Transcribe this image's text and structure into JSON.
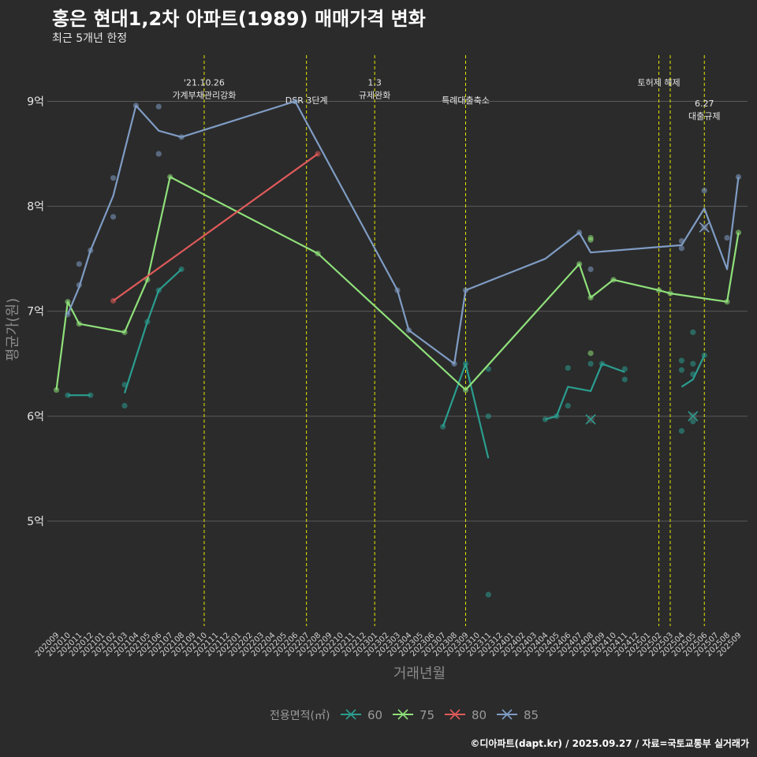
{
  "title": "홍은 현대1,2차 아파트(1989) 매매가격 변화",
  "subtitle": "최근 5개년 한정",
  "caption": "©디아파트(dapt.kr) / 2025.09.27 / 자료=국토교통부 실거래가",
  "colors": {
    "background": "#2b2b2b",
    "grid": "#5a5a5a",
    "event_line": "#e6e600",
    "s60": "#2a9d8f",
    "s75": "#8fe07a",
    "s80": "#e05a5a",
    "s85": "#7f9cc4"
  },
  "chart_data": {
    "type": "line",
    "title": "홍은 현대1,2차 아파트(1989) 매매가격 변화",
    "xlabel": "거래년월",
    "ylabel": "평균가(원)",
    "ylim": [
      4.0,
      9.5
    ],
    "yticks": [
      5,
      6,
      7,
      8,
      9
    ],
    "ytick_labels": [
      "5억",
      "6억",
      "7억",
      "8억",
      "9억"
    ],
    "x_months": [
      "202009",
      "202010",
      "202011",
      "202012",
      "202101",
      "202102",
      "202103",
      "202104",
      "202105",
      "202106",
      "202107",
      "202108",
      "202109",
      "202110",
      "202111",
      "202112",
      "202201",
      "202202",
      "202203",
      "202204",
      "202205",
      "202206",
      "202207",
      "202208",
      "202209",
      "202210",
      "202211",
      "202212",
      "202301",
      "202302",
      "202303",
      "202304",
      "202305",
      "202306",
      "202307",
      "202308",
      "202309",
      "202310",
      "202311",
      "202312",
      "202401",
      "202402",
      "202403",
      "202404",
      "202405",
      "202406",
      "202407",
      "202408",
      "202409",
      "202410",
      "202411",
      "202412",
      "202501",
      "202502",
      "202503",
      "202504",
      "202505",
      "202506",
      "202507",
      "202508",
      "202509"
    ],
    "legend_title": "전용면적(㎡)",
    "legend_position": "bottom",
    "grid": true,
    "series": [
      {
        "name": "60",
        "color": "#2a9d8f",
        "line": [
          [
            [
              "202010",
              6.2
            ],
            [
              "202012",
              6.2
            ]
          ],
          [
            [
              "202103",
              6.22
            ],
            [
              "202105",
              6.9
            ],
            [
              "202106",
              7.2
            ],
            [
              "202108",
              7.4
            ]
          ],
          [
            [
              "202307",
              5.9
            ],
            [
              "202309",
              6.5
            ],
            [
              "202311",
              5.6
            ]
          ],
          [
            [
              "202404",
              5.97
            ],
            [
              "202405",
              6.0
            ],
            [
              "202406",
              6.28
            ],
            [
              "202408",
              6.24
            ],
            [
              "202409",
              6.5
            ],
            [
              "202411",
              6.42
            ]
          ],
          [
            [
              "202504",
              6.28
            ],
            [
              "202505",
              6.35
            ],
            [
              "202506",
              6.58
            ]
          ]
        ],
        "points": [
          [
            "202010",
            6.2
          ],
          [
            "202012",
            6.2
          ],
          [
            "202103",
            6.3
          ],
          [
            "202103",
            6.1
          ],
          [
            "202105",
            6.9
          ],
          [
            "202106",
            7.2
          ],
          [
            "202108",
            7.4
          ],
          [
            "202307",
            5.9
          ],
          [
            "202309",
            6.5
          ],
          [
            "202311",
            6.45
          ],
          [
            "202311",
            6.0
          ],
          [
            "202311",
            4.3
          ],
          [
            "202404",
            5.97
          ],
          [
            "202405",
            6.0
          ],
          [
            "202406",
            6.46
          ],
          [
            "202406",
            6.1
          ],
          [
            "202408",
            6.5
          ],
          [
            "202409",
            6.5
          ],
          [
            "202411",
            6.45
          ],
          [
            "202411",
            6.35
          ],
          [
            "202504",
            6.53
          ],
          [
            "202504",
            6.44
          ],
          [
            "202504",
            5.86
          ],
          [
            "202505",
            6.8
          ],
          [
            "202505",
            6.5
          ],
          [
            "202505",
            6.4
          ],
          [
            "202505",
            5.95
          ],
          [
            "202506",
            6.58
          ]
        ],
        "marks": [
          [
            "202408",
            5.97
          ],
          [
            "202505",
            6.0
          ]
        ]
      },
      {
        "name": "75",
        "color": "#8fe07a",
        "line": [
          [
            [
              "202009",
              6.25
            ],
            [
              "202010",
              7.09
            ],
            [
              "202011",
              6.88
            ],
            [
              "202103",
              6.8
            ],
            [
              "202105",
              7.3
            ],
            [
              "202107",
              8.28
            ],
            [
              "202208",
              7.55
            ],
            [
              "202309",
              6.25
            ],
            [
              "202407",
              7.45
            ],
            [
              "202408",
              7.13
            ],
            [
              "202410",
              7.3
            ],
            [
              "202502",
              7.2
            ],
            [
              "202503",
              7.17
            ],
            [
              "202508",
              7.09
            ],
            [
              "202509",
              7.75
            ]
          ]
        ],
        "points": [
          [
            "202009",
            6.25
          ],
          [
            "202010",
            7.09
          ],
          [
            "202011",
            6.88
          ],
          [
            "202103",
            6.8
          ],
          [
            "202105",
            7.3
          ],
          [
            "202107",
            8.28
          ],
          [
            "202208",
            7.55
          ],
          [
            "202309",
            6.25
          ],
          [
            "202407",
            7.45
          ],
          [
            "202408",
            7.13
          ],
          [
            "202408",
            7.7
          ],
          [
            "202408",
            7.68
          ],
          [
            "202408",
            6.6
          ],
          [
            "202410",
            7.3
          ],
          [
            "202502",
            7.2
          ],
          [
            "202503",
            7.17
          ],
          [
            "202508",
            7.09
          ],
          [
            "202509",
            7.75
          ]
        ],
        "marks": []
      },
      {
        "name": "80",
        "color": "#e05a5a",
        "line": [
          [
            [
              "202102",
              7.1
            ],
            [
              "202208",
              8.5
            ]
          ]
        ],
        "points": [
          [
            "202102",
            7.1
          ],
          [
            "202208",
            8.5
          ]
        ],
        "marks": []
      },
      {
        "name": "85",
        "color": "#7f9cc4",
        "line": [
          [
            [
              "202010",
              6.97
            ],
            [
              "202011",
              7.23
            ],
            [
              "202012",
              7.58
            ],
            [
              "202102",
              8.1
            ],
            [
              "202104",
              8.96
            ],
            [
              "202106",
              8.72
            ],
            [
              "202108",
              8.66
            ],
            [
              "202206",
              9.0
            ],
            [
              "202303",
              7.2
            ],
            [
              "202304",
              6.82
            ],
            [
              "202308",
              6.5
            ],
            [
              "202309",
              7.2
            ],
            [
              "202404",
              7.5
            ],
            [
              "202407",
              7.75
            ],
            [
              "202408",
              7.56
            ],
            [
              "202504",
              7.63
            ],
            [
              "202506",
              7.98
            ],
            [
              "202508",
              7.4
            ],
            [
              "202509",
              8.28
            ]
          ]
        ],
        "points": [
          [
            "202010",
            6.97
          ],
          [
            "202011",
            7.45
          ],
          [
            "202011",
            7.25
          ],
          [
            "202012",
            7.58
          ],
          [
            "202102",
            8.27
          ],
          [
            "202102",
            7.9
          ],
          [
            "202104",
            8.96
          ],
          [
            "202106",
            8.95
          ],
          [
            "202106",
            8.5
          ],
          [
            "202108",
            8.66
          ],
          [
            "202206",
            9.0
          ],
          [
            "202303",
            7.2
          ],
          [
            "202304",
            6.82
          ],
          [
            "202308",
            6.5
          ],
          [
            "202309",
            7.2
          ],
          [
            "202407",
            7.75
          ],
          [
            "202408",
            7.4
          ],
          [
            "202504",
            7.67
          ],
          [
            "202504",
            7.6
          ],
          [
            "202506",
            8.15
          ],
          [
            "202506",
            7.8
          ],
          [
            "202508",
            7.7
          ],
          [
            "202509",
            8.28
          ]
        ],
        "marks": [
          [
            "202506",
            7.8
          ]
        ]
      }
    ],
    "events": [
      {
        "month": "202110",
        "label_lines": [
          "'21.10.26",
          "가계부채관리강화"
        ],
        "label_y": 9.15
      },
      {
        "month": "202207",
        "label_lines": [
          "DSR 3단계"
        ],
        "label_y": 8.98
      },
      {
        "month": "202301",
        "label_lines": [
          "1.3",
          "규제완화"
        ],
        "label_y": 9.15
      },
      {
        "month": "202309",
        "label_lines": [
          "특례대출축소"
        ],
        "label_y": 8.98
      },
      {
        "month": "202502",
        "label_lines": [
          "토허제 해제"
        ],
        "label_y": 9.15
      },
      {
        "month": "202503",
        "label_lines": [],
        "label_y": 9.15
      },
      {
        "month": "202506",
        "label_lines": [
          "6.27",
          "대출규제"
        ],
        "label_y": 8.95
      }
    ]
  }
}
